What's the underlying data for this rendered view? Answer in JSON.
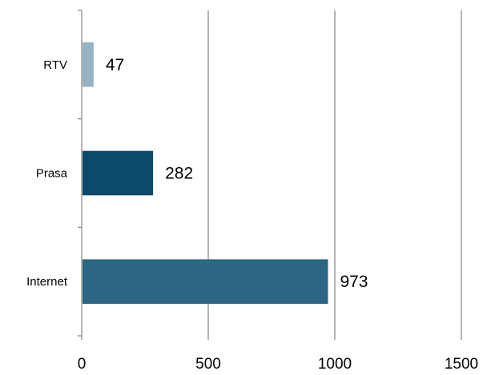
{
  "chart_data": {
    "type": "bar",
    "orientation": "horizontal",
    "categories": [
      "RTV",
      "Prasa",
      "Internet"
    ],
    "values": [
      47,
      282,
      973
    ],
    "data_labels": [
      "47",
      "282",
      "973"
    ],
    "bar_colors": [
      "#95b3c3",
      "#0d4a6a",
      "#2b6683"
    ],
    "xlim": [
      0,
      1500
    ],
    "x_ticks": [
      0,
      500,
      1000,
      1500
    ],
    "x_tick_labels": [
      "0",
      "500",
      "1000",
      "1500"
    ],
    "grid": "vertical",
    "gridline_color": "#8c8c8c",
    "axis_color": "#8c8c8c",
    "legend": "none"
  }
}
